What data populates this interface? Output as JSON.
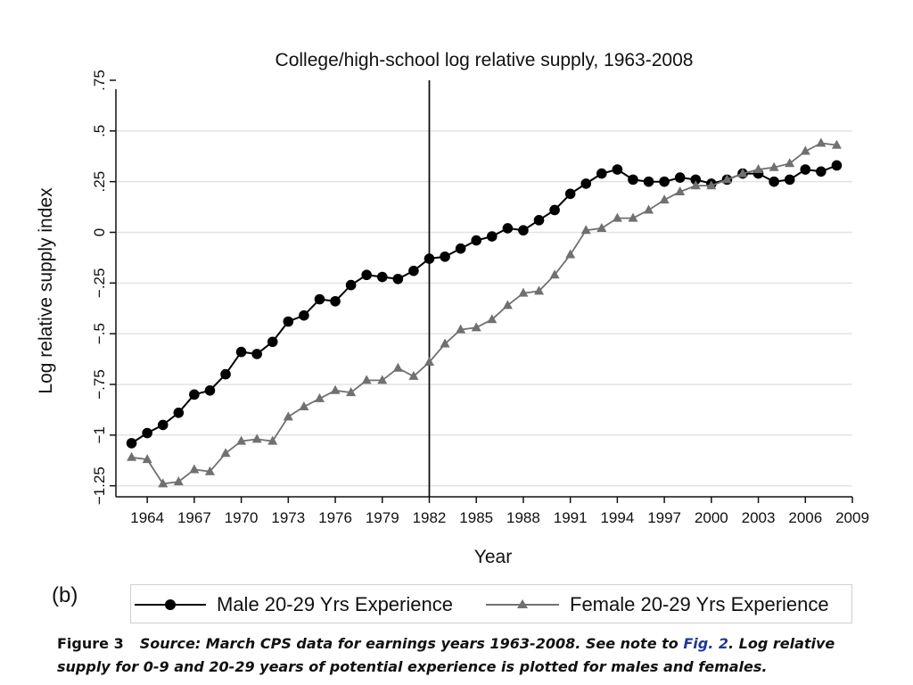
{
  "chart_data": {
    "type": "line",
    "title": "College/high-school log relative supply, 1963-2008",
    "xlabel": "Year",
    "ylabel": "Log relative supply index",
    "xlim": [
      1962,
      2009
    ],
    "ylim": [
      -1.3,
      0.75
    ],
    "x_ticks": [
      1964,
      1967,
      1970,
      1973,
      1976,
      1979,
      1982,
      1985,
      1988,
      1991,
      1994,
      1997,
      2000,
      2003,
      2006,
      2009
    ],
    "y_ticks": [
      {
        "value": 0.75,
        "label": ".75"
      },
      {
        "value": 0.5,
        "label": ".5"
      },
      {
        "value": 0.25,
        "label": ".25"
      },
      {
        "value": 0,
        "label": "0"
      },
      {
        "value": -0.25,
        "label": "−.25"
      },
      {
        "value": -0.5,
        "label": "−.5"
      },
      {
        "value": -0.75,
        "label": "−.75"
      },
      {
        "value": -1,
        "label": "−1"
      },
      {
        "value": -1.25,
        "label": "−1.25"
      }
    ],
    "gridlines": "horizontal",
    "vertical_line_x": 1982,
    "x": [
      1963,
      1964,
      1965,
      1966,
      1967,
      1968,
      1969,
      1970,
      1971,
      1972,
      1973,
      1974,
      1975,
      1976,
      1977,
      1978,
      1979,
      1980,
      1981,
      1982,
      1983,
      1984,
      1985,
      1986,
      1987,
      1988,
      1989,
      1990,
      1991,
      1992,
      1993,
      1994,
      1995,
      1996,
      1997,
      1998,
      1999,
      2000,
      2001,
      2002,
      2003,
      2004,
      2005,
      2006,
      2007,
      2008
    ],
    "series": [
      {
        "name": "Male 20-29 Yrs Experience",
        "color": "#000000",
        "marker": "circle",
        "values": [
          -1.04,
          -0.99,
          -0.95,
          -0.89,
          -0.8,
          -0.78,
          -0.7,
          -0.59,
          -0.6,
          -0.54,
          -0.44,
          -0.41,
          -0.33,
          -0.34,
          -0.26,
          -0.21,
          -0.22,
          -0.23,
          -0.19,
          -0.13,
          -0.12,
          -0.08,
          -0.04,
          -0.02,
          0.02,
          0.01,
          0.06,
          0.11,
          0.19,
          0.24,
          0.29,
          0.31,
          0.26,
          0.25,
          0.25,
          0.27,
          0.26,
          0.24,
          0.26,
          0.29,
          0.29,
          0.25,
          0.26,
          0.31,
          0.3,
          0.33
        ]
      },
      {
        "name": "Female 20-29 Yrs Experience",
        "color": "#707070",
        "marker": "triangle",
        "values": [
          -1.11,
          -1.12,
          -1.24,
          -1.23,
          -1.17,
          -1.18,
          -1.09,
          -1.03,
          -1.02,
          -1.03,
          -0.91,
          -0.86,
          -0.82,
          -0.78,
          -0.79,
          -0.73,
          -0.73,
          -0.67,
          -0.71,
          -0.64,
          -0.55,
          -0.48,
          -0.47,
          -0.43,
          -0.36,
          -0.3,
          -0.29,
          -0.21,
          -0.11,
          0.01,
          0.02,
          0.07,
          0.07,
          0.11,
          0.16,
          0.2,
          0.23,
          0.23,
          0.26,
          0.29,
          0.31,
          0.32,
          0.34,
          0.4,
          0.44,
          0.43
        ]
      }
    ],
    "legend_position": "bottom"
  },
  "panel_label": "(b)",
  "caption": {
    "figure_number": "Figure 3",
    "text_before_link": "Source: March CPS data for earnings years 1963-2008. See note to ",
    "link_text": "Fig. 2",
    "text_after_link": ". Log relative supply for 0-9 and 20-29 years of potential experience is plotted for males and females."
  }
}
